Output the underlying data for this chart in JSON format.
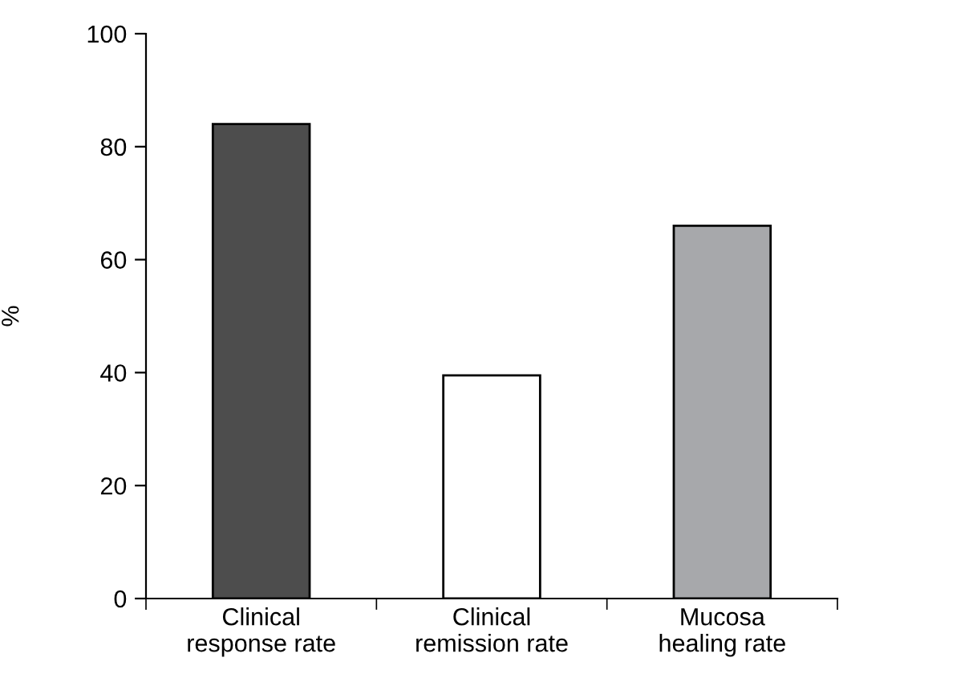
{
  "chart_data": {
    "type": "bar",
    "ylabel": "%",
    "categories": [
      "Clinical\nresponse rate",
      "Clinical\nremission rate",
      "Mucosa\nhealing rate"
    ],
    "values": [
      84,
      39.5,
      66
    ],
    "colors": [
      "#4d4d4d",
      "#ffffff",
      "#a7a8ab"
    ],
    "ylim": [
      0,
      100
    ],
    "yticks": [
      0,
      20,
      40,
      60,
      80,
      100
    ],
    "grid": false,
    "legend": false
  }
}
